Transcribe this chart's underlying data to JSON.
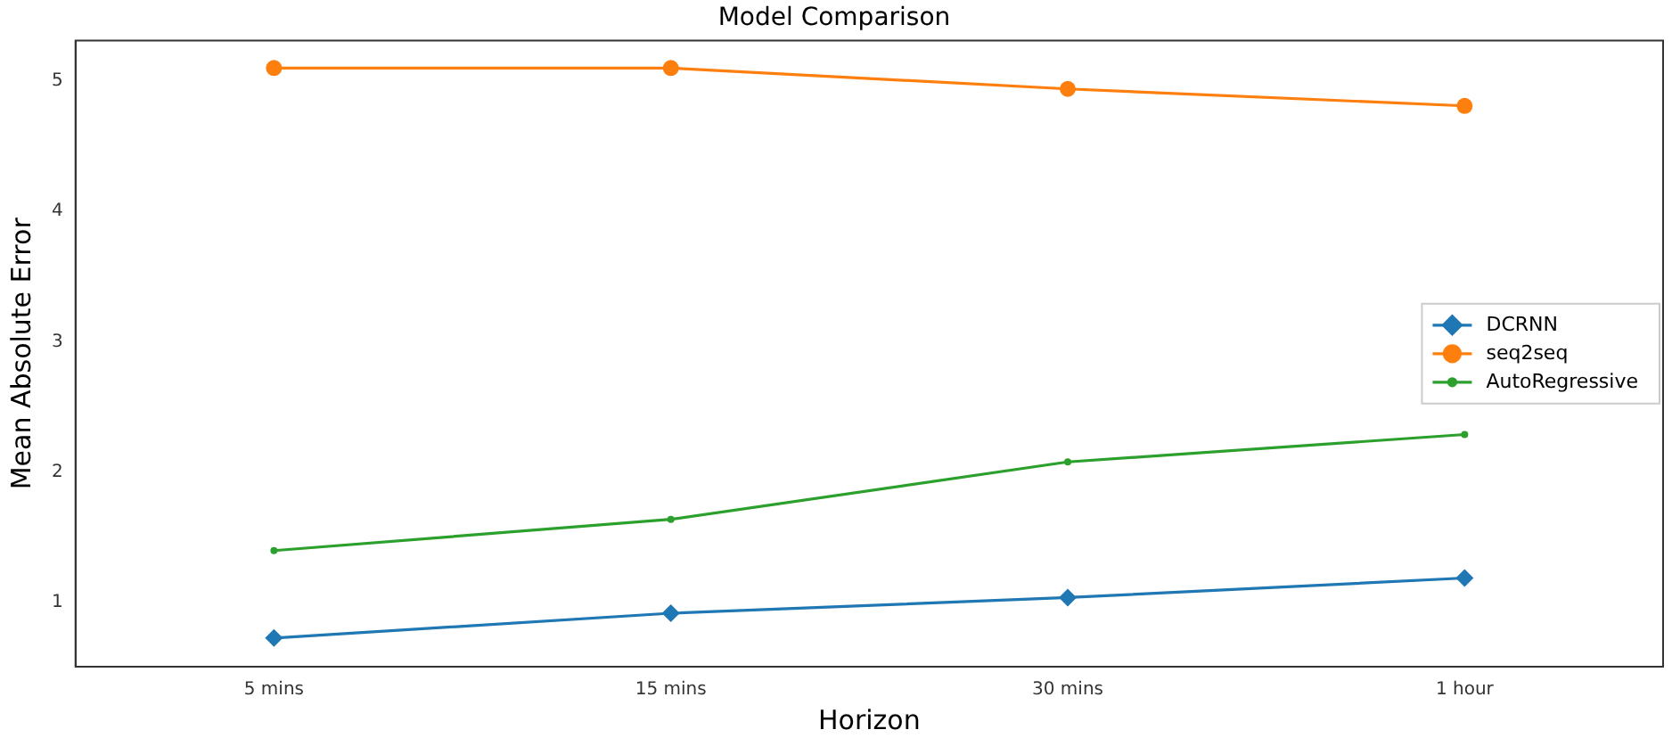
{
  "chart_data": {
    "type": "line",
    "title": "Model Comparison",
    "xlabel": "Horizon",
    "ylabel": "Mean Absolute Error",
    "categories": [
      "5 mins",
      "15 mins",
      "30 mins",
      "1 hour"
    ],
    "series": [
      {
        "name": "DCRNN",
        "color": "#1f77b4",
        "marker": "diamond",
        "values": [
          0.73,
          0.92,
          1.04,
          1.19
        ]
      },
      {
        "name": "seq2seq",
        "color": "#ff7f0e",
        "marker": "circle",
        "values": [
          5.1,
          5.1,
          4.94,
          4.81
        ]
      },
      {
        "name": "AutoRegressive",
        "color": "#2ca02c",
        "marker": "point",
        "values": [
          1.4,
          1.64,
          2.08,
          2.29
        ]
      }
    ],
    "ylim": [
      0.51,
      5.31
    ],
    "yticks": [
      1,
      2,
      3,
      4,
      5
    ],
    "grid": false,
    "legend": "right"
  }
}
